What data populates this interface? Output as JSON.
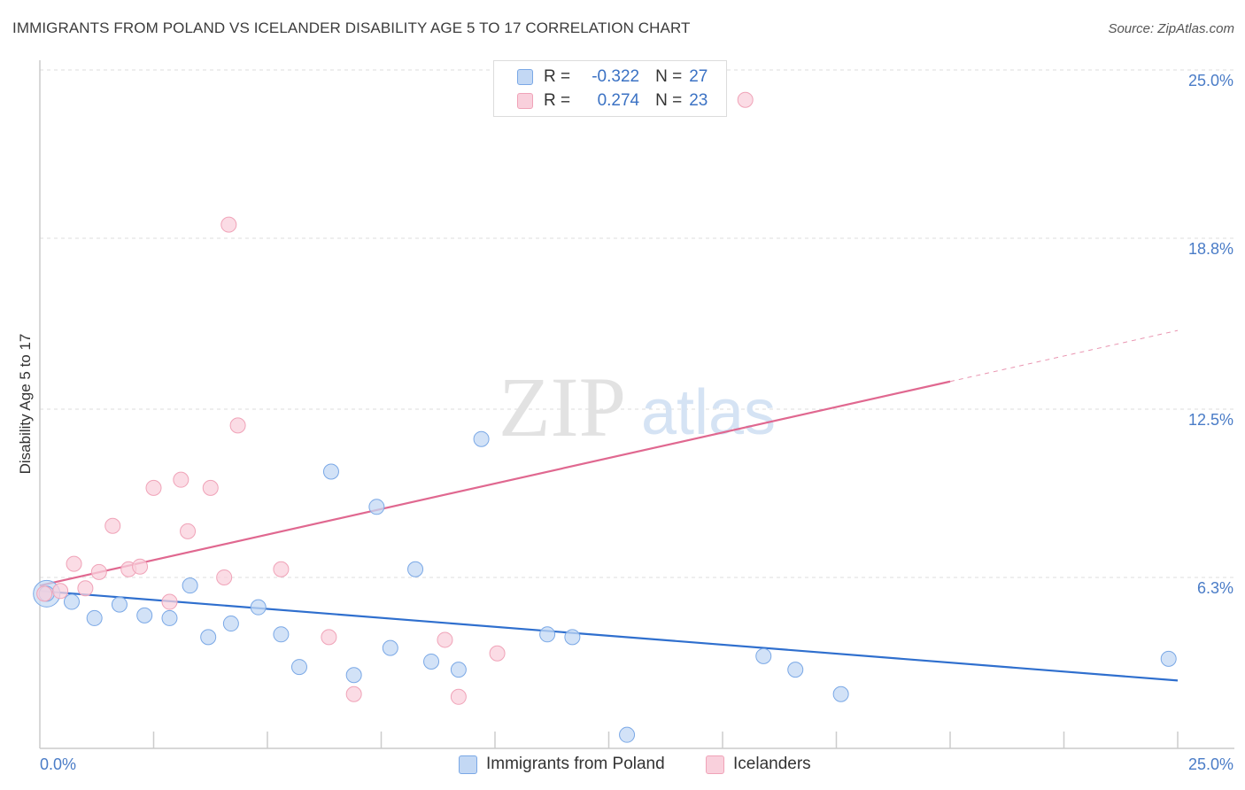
{
  "title": "IMMIGRANTS FROM POLAND VS ICELANDER DISABILITY AGE 5 TO 17 CORRELATION CHART",
  "source": "Source: ZipAtlas.com",
  "watermark": {
    "zip": "ZIP",
    "atlas": "atlas"
  },
  "legend": {
    "rows": [
      {
        "r_label": "R =",
        "r_value": "-0.322",
        "n_label": "N =",
        "n_value": "27"
      },
      {
        "r_label": "R =",
        "r_value": "0.274",
        "n_label": "N =",
        "n_value": "23"
      }
    ]
  },
  "bottom_legend": {
    "poland": "Immigrants from Poland",
    "icelanders": "Icelanders"
  },
  "chart_data": {
    "type": "scatter",
    "title": "IMMIGRANTS FROM POLAND VS ICELANDER DISABILITY AGE 5 TO 17 CORRELATION CHART",
    "xlabel": "",
    "ylabel": "Disability Age 5 to 17",
    "xlim": [
      0,
      25
    ],
    "ylim": [
      0,
      25
    ],
    "x_tick_labels": [
      "0.0%",
      "25.0%"
    ],
    "y_ticks": [
      6.3,
      12.5,
      18.8,
      25.0
    ],
    "y_tick_labels": [
      "6.3%",
      "12.5%",
      "18.8%",
      "25.0%"
    ],
    "grid": true,
    "colors": {
      "poland": "#7aa8e6",
      "poland_fill": "#c3d8f4",
      "poland_line": "#2f6fce",
      "icelanders": "#f0a3b8",
      "icelanders_fill": "#f9d0dc",
      "icelanders_line": "#e06890",
      "tick": "#4a7cc7",
      "grid": "#dddddd"
    },
    "series": [
      {
        "name": "Immigrants from Poland",
        "r": -0.322,
        "n": 27,
        "points": [
          [
            0.15,
            5.7
          ],
          [
            0.7,
            5.4
          ],
          [
            1.2,
            4.8
          ],
          [
            1.75,
            5.3
          ],
          [
            2.3,
            4.9
          ],
          [
            2.85,
            4.8
          ],
          [
            3.3,
            6.0
          ],
          [
            3.7,
            4.1
          ],
          [
            4.2,
            4.6
          ],
          [
            4.8,
            5.2
          ],
          [
            5.3,
            4.2
          ],
          [
            5.7,
            3.0
          ],
          [
            6.4,
            10.2
          ],
          [
            6.9,
            2.7
          ],
          [
            7.4,
            8.9
          ],
          [
            7.7,
            3.7
          ],
          [
            8.25,
            6.6
          ],
          [
            8.6,
            3.2
          ],
          [
            9.2,
            2.9
          ],
          [
            9.7,
            11.4
          ],
          [
            11.15,
            4.2
          ],
          [
            11.7,
            4.1
          ],
          [
            12.9,
            0.5
          ],
          [
            15.9,
            3.4
          ],
          [
            16.6,
            2.9
          ],
          [
            17.6,
            2.0
          ],
          [
            24.8,
            3.3
          ]
        ],
        "trend": {
          "x0": 0,
          "y0": 5.8,
          "x1": 25,
          "y1": 2.5
        }
      },
      {
        "name": "Icelanders",
        "r": 0.274,
        "n": 23,
        "points": [
          [
            0.1,
            5.7
          ],
          [
            0.45,
            5.8
          ],
          [
            0.75,
            6.8
          ],
          [
            1.0,
            5.9
          ],
          [
            1.3,
            6.5
          ],
          [
            1.6,
            8.2
          ],
          [
            1.95,
            6.6
          ],
          [
            2.2,
            6.7
          ],
          [
            2.5,
            9.6
          ],
          [
            2.85,
            5.4
          ],
          [
            3.1,
            9.9
          ],
          [
            3.25,
            8.0
          ],
          [
            3.75,
            9.6
          ],
          [
            4.05,
            6.3
          ],
          [
            4.15,
            19.3
          ],
          [
            4.35,
            11.9
          ],
          [
            5.3,
            6.6
          ],
          [
            6.35,
            4.1
          ],
          [
            6.9,
            2.0
          ],
          [
            8.9,
            4.0
          ],
          [
            9.2,
            1.9
          ],
          [
            10.05,
            3.5
          ],
          [
            15.5,
            23.9
          ]
        ],
        "trend": {
          "x0": 0,
          "y0": 6.0,
          "x1": 25,
          "y1": 15.4,
          "solid_until_x": 20
        }
      }
    ]
  }
}
